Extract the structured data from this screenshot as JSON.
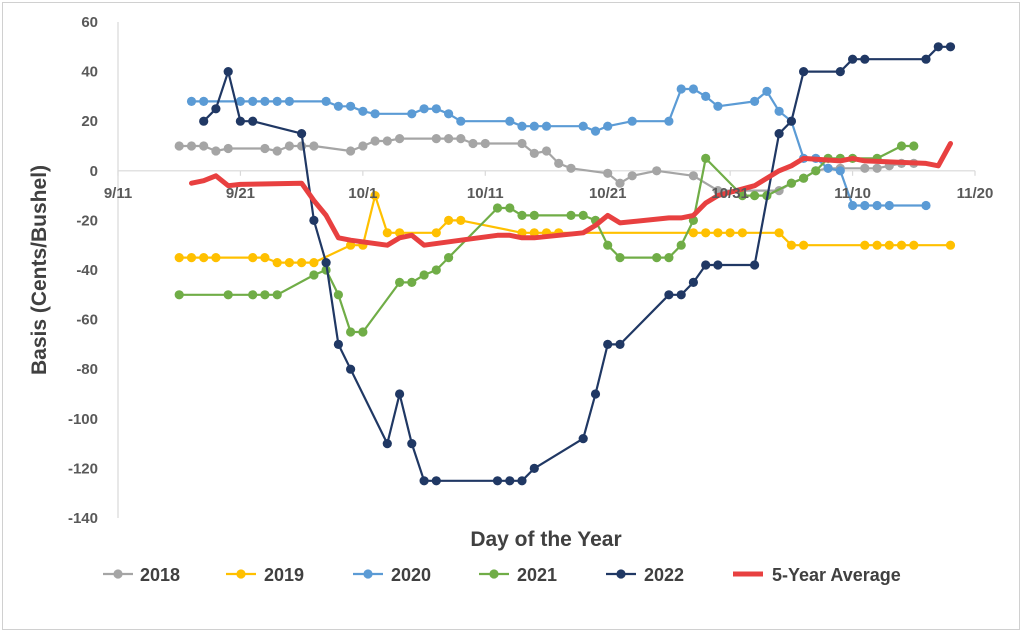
{
  "chart_data": {
    "type": "line",
    "title": "",
    "xlabel": "Day of the Year",
    "ylabel": "Basis (Cents/Bushel)",
    "xlim": [
      "9/11",
      "11/20"
    ],
    "ylim": [
      -140,
      60
    ],
    "x_ticks": [
      "9/11",
      "9/21",
      "10/1",
      "10/11",
      "10/21",
      "10/31",
      "11/10",
      "11/20"
    ],
    "y_ticks": [
      60,
      40,
      20,
      0,
      -20,
      -40,
      -60,
      -80,
      -100,
      -120,
      -140
    ],
    "grid": false,
    "legend_position": "bottom",
    "series": [
      {
        "name": "2018",
        "color": "#a5a5a5",
        "markers": true,
        "points": [
          [
            "9/16",
            10
          ],
          [
            "9/17",
            10
          ],
          [
            "9/18",
            10
          ],
          [
            "9/19",
            8
          ],
          [
            "9/20",
            9
          ],
          [
            "9/23",
            9
          ],
          [
            "9/24",
            8
          ],
          [
            "9/25",
            10
          ],
          [
            "9/26",
            10
          ],
          [
            "9/27",
            10
          ],
          [
            "9/30",
            8
          ],
          [
            "10/1",
            10
          ],
          [
            "10/2",
            12
          ],
          [
            "10/3",
            12
          ],
          [
            "10/4",
            13
          ],
          [
            "10/7",
            13
          ],
          [
            "10/8",
            13
          ],
          [
            "10/9",
            13
          ],
          [
            "10/10",
            11
          ],
          [
            "10/11",
            11
          ],
          [
            "10/14",
            11
          ],
          [
            "10/15",
            7
          ],
          [
            "10/16",
            8
          ],
          [
            "10/17",
            3
          ],
          [
            "10/18",
            1
          ],
          [
            "10/21",
            -1
          ],
          [
            "10/22",
            -5
          ],
          [
            "10/23",
            -2
          ],
          [
            "10/25",
            0
          ],
          [
            "10/28",
            -2
          ],
          [
            "10/30",
            -8
          ],
          [
            "11/4",
            -8
          ],
          [
            "11/5",
            -5
          ],
          [
            "11/6",
            -3
          ],
          [
            "11/7",
            0
          ],
          [
            "11/8",
            1
          ],
          [
            "11/9",
            1
          ],
          [
            "11/11",
            1
          ],
          [
            "11/12",
            1
          ],
          [
            "11/13",
            2
          ],
          [
            "11/14",
            3
          ],
          [
            "11/15",
            3
          ]
        ]
      },
      {
        "name": "2019",
        "color": "#ffc000",
        "markers": true,
        "points": [
          [
            "9/16",
            -35
          ],
          [
            "9/17",
            -35
          ],
          [
            "9/18",
            -35
          ],
          [
            "9/19",
            -35
          ],
          [
            "9/22",
            -35
          ],
          [
            "9/23",
            -35
          ],
          [
            "9/24",
            -37
          ],
          [
            "9/25",
            -37
          ],
          [
            "9/26",
            -37
          ],
          [
            "9/27",
            -37
          ],
          [
            "9/30",
            -30
          ],
          [
            "10/1",
            -30
          ],
          [
            "10/2",
            -10
          ],
          [
            "10/3",
            -25
          ],
          [
            "10/4",
            -25
          ],
          [
            "10/7",
            -25
          ],
          [
            "10/8",
            -20
          ],
          [
            "10/9",
            -20
          ],
          [
            "10/14",
            -25
          ],
          [
            "10/15",
            -25
          ],
          [
            "10/16",
            -25
          ],
          [
            "10/17",
            -25
          ],
          [
            "10/28",
            -25
          ],
          [
            "10/29",
            -25
          ],
          [
            "10/30",
            -25
          ],
          [
            "10/31",
            -25
          ],
          [
            "11/1",
            -25
          ],
          [
            "11/4",
            -25
          ],
          [
            "11/5",
            -30
          ],
          [
            "11/6",
            -30
          ],
          [
            "11/11",
            -30
          ],
          [
            "11/12",
            -30
          ],
          [
            "11/13",
            -30
          ],
          [
            "11/14",
            -30
          ],
          [
            "11/15",
            -30
          ],
          [
            "11/18",
            -30
          ]
        ]
      },
      {
        "name": "2020",
        "color": "#5b9bd5",
        "markers": true,
        "points": [
          [
            "9/17",
            28
          ],
          [
            "9/18",
            28
          ],
          [
            "9/21",
            28
          ],
          [
            "9/22",
            28
          ],
          [
            "9/23",
            28
          ],
          [
            "9/24",
            28
          ],
          [
            "9/25",
            28
          ],
          [
            "9/28",
            28
          ],
          [
            "9/29",
            26
          ],
          [
            "9/30",
            26
          ],
          [
            "10/1",
            24
          ],
          [
            "10/2",
            23
          ],
          [
            "10/5",
            23
          ],
          [
            "10/6",
            25
          ],
          [
            "10/7",
            25
          ],
          [
            "10/8",
            23
          ],
          [
            "10/9",
            20
          ],
          [
            "10/13",
            20
          ],
          [
            "10/14",
            18
          ],
          [
            "10/15",
            18
          ],
          [
            "10/16",
            18
          ],
          [
            "10/19",
            18
          ],
          [
            "10/20",
            16
          ],
          [
            "10/21",
            18
          ],
          [
            "10/23",
            20
          ],
          [
            "10/26",
            20
          ],
          [
            "10/27",
            33
          ],
          [
            "10/28",
            33
          ],
          [
            "10/29",
            30
          ],
          [
            "10/30",
            26
          ],
          [
            "11/2",
            28
          ],
          [
            "11/3",
            32
          ],
          [
            "11/4",
            24
          ],
          [
            "11/5",
            20
          ],
          [
            "11/6",
            5
          ],
          [
            "11/7",
            5
          ],
          [
            "11/8",
            1
          ],
          [
            "11/9",
            0
          ],
          [
            "11/10",
            -14
          ],
          [
            "11/11",
            -14
          ],
          [
            "11/12",
            -14
          ],
          [
            "11/13",
            -14
          ],
          [
            "11/16",
            -14
          ]
        ]
      },
      {
        "name": "2021",
        "color": "#70ad47",
        "markers": true,
        "points": [
          [
            "9/16",
            -50
          ],
          [
            "9/20",
            -50
          ],
          [
            "9/22",
            -50
          ],
          [
            "9/23",
            -50
          ],
          [
            "9/24",
            -50
          ],
          [
            "9/27",
            -42
          ],
          [
            "9/28",
            -40
          ],
          [
            "9/29",
            -50
          ],
          [
            "9/30",
            -65
          ],
          [
            "10/1",
            -65
          ],
          [
            "10/4",
            -45
          ],
          [
            "10/5",
            -45
          ],
          [
            "10/6",
            -42
          ],
          [
            "10/7",
            -40
          ],
          [
            "10/8",
            -35
          ],
          [
            "10/12",
            -15
          ],
          [
            "10/13",
            -15
          ],
          [
            "10/14",
            -18
          ],
          [
            "10/15",
            -18
          ],
          [
            "10/18",
            -18
          ],
          [
            "10/19",
            -18
          ],
          [
            "10/20",
            -20
          ],
          [
            "10/21",
            -30
          ],
          [
            "10/22",
            -35
          ],
          [
            "10/25",
            -35
          ],
          [
            "10/26",
            -35
          ],
          [
            "10/27",
            -30
          ],
          [
            "10/28",
            -20
          ],
          [
            "10/29",
            5
          ],
          [
            "11/1",
            -10
          ],
          [
            "11/2",
            -10
          ],
          [
            "11/3",
            -10
          ],
          [
            "11/5",
            -5
          ],
          [
            "11/6",
            -3
          ],
          [
            "11/7",
            0
          ],
          [
            "11/8",
            5
          ],
          [
            "11/9",
            5
          ],
          [
            "11/10",
            5
          ],
          [
            "11/12",
            5
          ],
          [
            "11/14",
            10
          ],
          [
            "11/15",
            10
          ]
        ]
      },
      {
        "name": "2022",
        "color": "#203864",
        "markers": true,
        "points": [
          [
            "9/18",
            20
          ],
          [
            "9/19",
            25
          ],
          [
            "9/20",
            40
          ],
          [
            "9/21",
            20
          ],
          [
            "9/22",
            20
          ],
          [
            "9/26",
            15
          ],
          [
            "9/27",
            -20
          ],
          [
            "9/28",
            -37
          ],
          [
            "9/29",
            -70
          ],
          [
            "9/30",
            -80
          ],
          [
            "10/3",
            -110
          ],
          [
            "10/4",
            -90
          ],
          [
            "10/5",
            -110
          ],
          [
            "10/6",
            -125
          ],
          [
            "10/7",
            -125
          ],
          [
            "10/12",
            -125
          ],
          [
            "10/13",
            -125
          ],
          [
            "10/14",
            -125
          ],
          [
            "10/15",
            -120
          ],
          [
            "10/19",
            -108
          ],
          [
            "10/20",
            -90
          ],
          [
            "10/21",
            -70
          ],
          [
            "10/22",
            -70
          ],
          [
            "10/26",
            -50
          ],
          [
            "10/27",
            -50
          ],
          [
            "10/28",
            -45
          ],
          [
            "10/29",
            -38
          ],
          [
            "10/30",
            -38
          ],
          [
            "11/2",
            -38
          ],
          [
            "11/4",
            15
          ],
          [
            "11/5",
            20
          ],
          [
            "11/6",
            40
          ],
          [
            "11/9",
            40
          ],
          [
            "11/10",
            45
          ],
          [
            "11/11",
            45
          ],
          [
            "11/16",
            45
          ],
          [
            "11/17",
            50
          ],
          [
            "11/18",
            50
          ]
        ]
      },
      {
        "name": "5-Year Average",
        "color": "#e84040",
        "markers": false,
        "points": [
          [
            "9/17",
            -5
          ],
          [
            "9/18",
            -4
          ],
          [
            "9/19",
            -2
          ],
          [
            "9/20",
            -6
          ],
          [
            "9/21",
            -5.5
          ],
          [
            "9/26",
            -5
          ],
          [
            "9/27",
            -12
          ],
          [
            "9/28",
            -18
          ],
          [
            "9/29",
            -27
          ],
          [
            "9/30",
            -28
          ],
          [
            "10/3",
            -30
          ],
          [
            "10/4",
            -27
          ],
          [
            "10/5",
            -26
          ],
          [
            "10/6",
            -30
          ],
          [
            "10/9",
            -28
          ],
          [
            "10/12",
            -26
          ],
          [
            "10/13",
            -26
          ],
          [
            "10/14",
            -27
          ],
          [
            "10/15",
            -27
          ],
          [
            "10/19",
            -25
          ],
          [
            "10/20",
            -22
          ],
          [
            "10/21",
            -18
          ],
          [
            "10/22",
            -21
          ],
          [
            "10/26",
            -19
          ],
          [
            "10/27",
            -19
          ],
          [
            "10/28",
            -18
          ],
          [
            "10/29",
            -13
          ],
          [
            "10/30",
            -10
          ],
          [
            "11/2",
            -6
          ],
          [
            "11/4",
            0
          ],
          [
            "11/5",
            2
          ],
          [
            "11/6",
            5
          ],
          [
            "11/9",
            4
          ],
          [
            "11/10",
            5
          ],
          [
            "11/11",
            4
          ],
          [
            "11/16",
            3
          ],
          [
            "11/17",
            2
          ],
          [
            "11/18",
            11
          ]
        ]
      }
    ]
  }
}
